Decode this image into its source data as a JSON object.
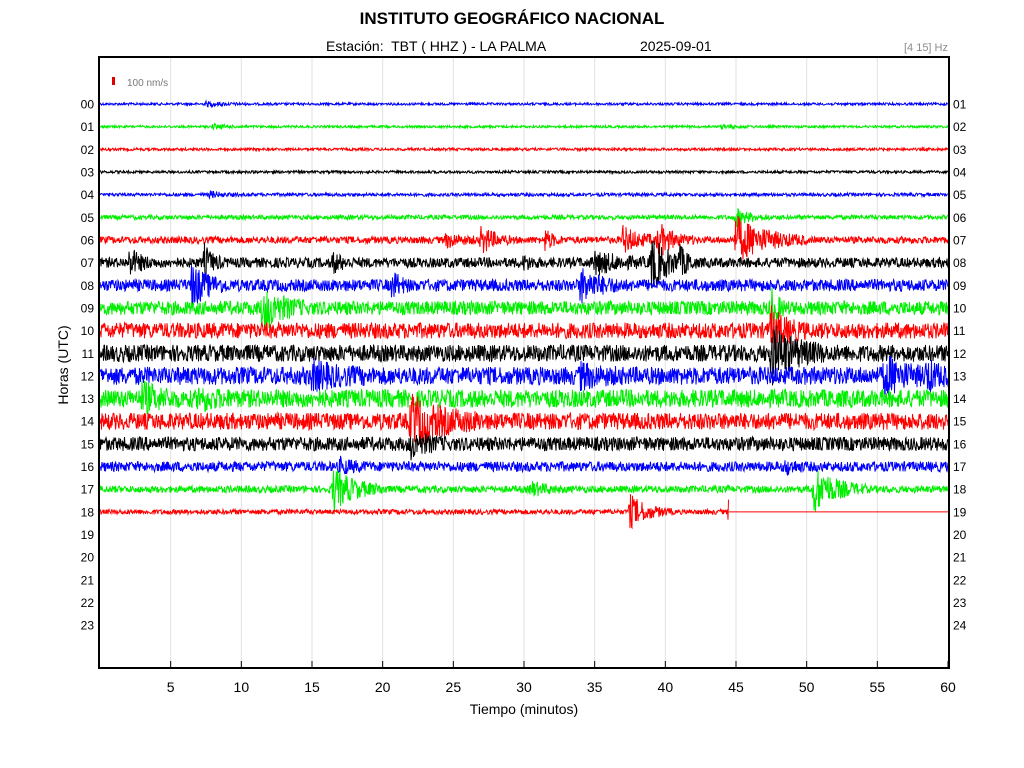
{
  "header": {
    "title": "INSTITUTO GEOGRÁFICO NACIONAL",
    "station": "Estación:  TBT ( HHZ ) - LA PALMA",
    "date": "2025-09-01",
    "band": "[4 15] Hz"
  },
  "chart_data": {
    "type": "line",
    "chart_kind": "helicorder",
    "xlabel": "Tiempo (minutos)",
    "ylabel": "Horas (UTC)",
    "xlim": [
      0,
      60
    ],
    "x_ticks": [
      5,
      10,
      15,
      20,
      25,
      30,
      35,
      40,
      45,
      50,
      55,
      60
    ],
    "scale_label": "100 nm/s",
    "scale_color": "#e00000",
    "grid": "vertical",
    "color_cycle": [
      "#0000ff",
      "#00ee00",
      "#ff0000",
      "#000000"
    ],
    "hours_left": [
      "00",
      "01",
      "02",
      "03",
      "04",
      "05",
      "06",
      "07",
      "08",
      "09",
      "10",
      "11",
      "12",
      "13",
      "14",
      "15",
      "16",
      "17",
      "18",
      "19",
      "20",
      "21",
      "22",
      "23"
    ],
    "hours_right": [
      "01",
      "02",
      "03",
      "04",
      "05",
      "06",
      "07",
      "08",
      "09",
      "10",
      "11",
      "12",
      "13",
      "14",
      "15",
      "16",
      "17",
      "18",
      "19",
      "20",
      "21",
      "22",
      "23",
      "24"
    ],
    "traces": [
      {
        "hour": "00",
        "color": "#0000ff",
        "noise": 1.2,
        "events": [
          [
            7.5,
            2,
            1.2
          ]
        ]
      },
      {
        "hour": "01",
        "color": "#00ee00",
        "noise": 1.2,
        "events": [
          [
            8,
            2,
            1
          ],
          [
            44,
            2,
            1
          ]
        ]
      },
      {
        "hour": "02",
        "color": "#ff0000",
        "noise": 1.3,
        "events": []
      },
      {
        "hour": "03",
        "color": "#000000",
        "noise": 1.3,
        "events": []
      },
      {
        "hour": "04",
        "color": "#0000ff",
        "noise": 1.6,
        "events": [
          [
            7.8,
            3,
            0.8
          ]
        ]
      },
      {
        "hour": "05",
        "color": "#00ee00",
        "noise": 2.2,
        "events": [
          [
            45,
            8,
            1
          ]
        ]
      },
      {
        "hour": "06",
        "color": "#ff0000",
        "noise": 3.5,
        "events": [
          [
            24.5,
            6,
            1
          ],
          [
            27,
            14,
            0.8
          ],
          [
            31.5,
            10,
            0.5
          ],
          [
            37,
            12,
            1.2
          ],
          [
            39.5,
            15,
            1
          ],
          [
            45,
            22,
            2
          ]
        ]
      },
      {
        "hour": "07",
        "color": "#000000",
        "noise": 5,
        "events": [
          [
            2.1,
            12,
            0.7
          ],
          [
            7.4,
            16,
            0.5
          ],
          [
            16.5,
            8,
            0.6
          ],
          [
            30,
            5,
            0.5
          ],
          [
            35,
            10,
            1.5
          ],
          [
            39,
            25,
            1.2
          ],
          [
            41,
            10,
            0.5
          ]
        ]
      },
      {
        "hour": "08",
        "color": "#0000ff",
        "noise": 6,
        "events": [
          [
            6.5,
            20,
            1
          ],
          [
            20.7,
            12,
            0.5
          ],
          [
            34,
            15,
            1.2
          ]
        ]
      },
      {
        "hour": "09",
        "color": "#00ee00",
        "noise": 7,
        "events": [
          [
            11.5,
            20,
            1.2
          ],
          [
            47.5,
            18,
            0.4
          ]
        ]
      },
      {
        "hour": "10",
        "color": "#ff0000",
        "noise": 8,
        "events": [
          [
            47.5,
            18,
            1
          ]
        ]
      },
      {
        "hour": "11",
        "color": "#000000",
        "noise": 8.5,
        "events": [
          [
            47.5,
            25,
            1.5
          ]
        ]
      },
      {
        "hour": "12",
        "color": "#0000ff",
        "noise": 9,
        "events": [
          [
            15,
            10,
            1.5
          ],
          [
            34,
            8,
            1.2
          ],
          [
            55.5,
            18,
            1.2
          ],
          [
            58.5,
            12,
            0.8
          ]
        ]
      },
      {
        "hour": "13",
        "color": "#00ee00",
        "noise": 9,
        "events": [
          [
            3,
            12,
            1
          ],
          [
            7,
            8,
            1
          ]
        ]
      },
      {
        "hour": "14",
        "color": "#ff0000",
        "noise": 8.5,
        "events": [
          [
            22,
            22,
            2
          ]
        ]
      },
      {
        "hour": "15",
        "color": "#000000",
        "noise": 7,
        "events": [
          [
            22,
            10,
            1
          ]
        ]
      },
      {
        "hour": "16",
        "color": "#0000ff",
        "noise": 5,
        "events": [
          [
            17,
            6,
            0.8
          ],
          [
            48.5,
            6,
            0.6
          ]
        ]
      },
      {
        "hour": "17",
        "color": "#00ee00",
        "noise": 3.5,
        "events": [
          [
            16.5,
            20,
            1.5
          ],
          [
            30.5,
            6,
            1
          ],
          [
            50.5,
            22,
            1.5
          ]
        ]
      },
      {
        "hour": "18",
        "color": "#ff0000",
        "noise": 2.5,
        "end": 44.5,
        "events": [
          [
            37.5,
            16,
            1.2
          ],
          [
            44.5,
            15,
            0.05
          ]
        ]
      }
    ]
  }
}
